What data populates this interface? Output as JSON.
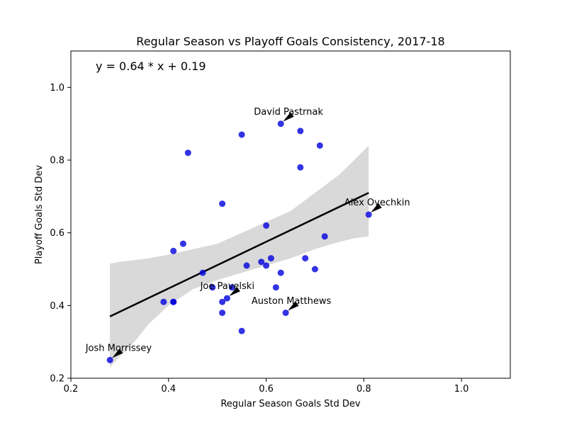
{
  "chart_data": {
    "type": "scatter",
    "title": "Regular Season vs Playoff Goals Consistency, 2017-18",
    "xlabel": "Regular Season Goals Std Dev",
    "ylabel": "Playoff Goals Std Dev",
    "xlim": [
      0.2,
      1.1
    ],
    "ylim": [
      0.2,
      1.1
    ],
    "xticks": [
      0.2,
      0.4,
      0.6,
      0.8,
      1.0
    ],
    "xtick_labels": [
      "0.2",
      "0.4",
      "0.6",
      "0.8",
      "1.0"
    ],
    "yticks": [
      0.2,
      0.4,
      0.6,
      0.8,
      1.0
    ],
    "ytick_labels": [
      "0.2",
      "0.4",
      "0.6",
      "0.8",
      "1.0"
    ],
    "grid": false,
    "equation": "y = 0.64 * x + 0.19",
    "point_color": "#0000dd",
    "band_color": "#d9d9d9",
    "line_color": "#000000",
    "points": [
      {
        "x": 0.28,
        "y": 0.25
      },
      {
        "x": 0.39,
        "y": 0.41
      },
      {
        "x": 0.41,
        "y": 0.41
      },
      {
        "x": 0.41,
        "y": 0.41
      },
      {
        "x": 0.41,
        "y": 0.55
      },
      {
        "x": 0.43,
        "y": 0.57
      },
      {
        "x": 0.44,
        "y": 0.82
      },
      {
        "x": 0.47,
        "y": 0.49
      },
      {
        "x": 0.49,
        "y": 0.45
      },
      {
        "x": 0.51,
        "y": 0.68
      },
      {
        "x": 0.51,
        "y": 0.41
      },
      {
        "x": 0.51,
        "y": 0.38
      },
      {
        "x": 0.52,
        "y": 0.42
      },
      {
        "x": 0.53,
        "y": 0.45
      },
      {
        "x": 0.55,
        "y": 0.87
      },
      {
        "x": 0.55,
        "y": 0.33
      },
      {
        "x": 0.56,
        "y": 0.51
      },
      {
        "x": 0.59,
        "y": 0.52
      },
      {
        "x": 0.6,
        "y": 0.62
      },
      {
        "x": 0.6,
        "y": 0.51
      },
      {
        "x": 0.61,
        "y": 0.53
      },
      {
        "x": 0.62,
        "y": 0.45
      },
      {
        "x": 0.63,
        "y": 0.9
      },
      {
        "x": 0.63,
        "y": 0.49
      },
      {
        "x": 0.64,
        "y": 0.38
      },
      {
        "x": 0.67,
        "y": 0.88
      },
      {
        "x": 0.67,
        "y": 0.78
      },
      {
        "x": 0.68,
        "y": 0.53
      },
      {
        "x": 0.7,
        "y": 0.5
      },
      {
        "x": 0.71,
        "y": 0.84
      },
      {
        "x": 0.72,
        "y": 0.59
      },
      {
        "x": 0.81,
        "y": 0.65
      }
    ],
    "regression": {
      "x": [
        0.28,
        0.81
      ],
      "y": [
        0.37,
        0.71
      ]
    },
    "confidence_band": {
      "x": [
        0.28,
        0.3,
        0.33,
        0.36,
        0.4,
        0.45,
        0.5,
        0.55,
        0.6,
        0.65,
        0.7,
        0.75,
        0.78,
        0.81
      ],
      "upper": [
        0.515,
        0.52,
        0.525,
        0.53,
        0.54,
        0.555,
        0.57,
        0.6,
        0.63,
        0.66,
        0.71,
        0.76,
        0.8,
        0.84
      ],
      "lower": [
        0.23,
        0.26,
        0.3,
        0.35,
        0.4,
        0.445,
        0.47,
        0.49,
        0.51,
        0.53,
        0.555,
        0.575,
        0.585,
        0.59
      ]
    },
    "annotations": [
      {
        "text": "David Pastrnak",
        "x": 0.63,
        "y": 0.9,
        "text_x": 0.575,
        "text_y": 0.925
      },
      {
        "text": "Alex Ovechkin",
        "x": 0.81,
        "y": 0.65,
        "text_x": 0.76,
        "text_y": 0.675
      },
      {
        "text": "Joe Pavelski",
        "x": 0.52,
        "y": 0.42,
        "text_x": 0.465,
        "text_y": 0.445
      },
      {
        "text": "Auston Matthews",
        "x": 0.64,
        "y": 0.38,
        "text_x": 0.57,
        "text_y": 0.405
      },
      {
        "text": "Josh Morrissey",
        "x": 0.28,
        "y": 0.25,
        "text_x": 0.23,
        "text_y": 0.275
      }
    ]
  }
}
